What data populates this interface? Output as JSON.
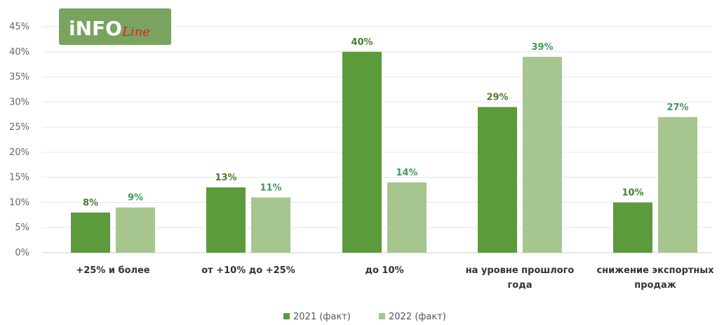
{
  "logo": {
    "text_main": "iNFO",
    "text_script": "Line",
    "bg_color": "#7aa35f"
  },
  "chart_data": {
    "type": "bar",
    "title": "",
    "xlabel": "",
    "ylabel": "",
    "ylim": [
      0,
      45
    ],
    "yticks": [
      "0%",
      "5%",
      "10%",
      "15%",
      "20%",
      "25%",
      "30%",
      "35%",
      "40%",
      "45%"
    ],
    "grid": true,
    "legend_position": "bottom",
    "categories": [
      [
        "+25% и более"
      ],
      [
        "от +10% до +25%"
      ],
      [
        "до 10%"
      ],
      [
        "на уровне прошлого",
        "года"
      ],
      [
        "снижение экспортных",
        "продаж"
      ]
    ],
    "series": [
      {
        "name": "2021 (факт)",
        "color": "#5b9b3b",
        "label_color": "#4a7f2f",
        "values": [
          8,
          13,
          40,
          29,
          10
        ],
        "labels": [
          "8%",
          "13%",
          "40%",
          "29%",
          "10%"
        ]
      },
      {
        "name": "2022 (факт)",
        "color": "#a6c58f",
        "label_color": "#3f9a5a",
        "values": [
          9,
          11,
          14,
          39,
          27
        ],
        "labels": [
          "9%",
          "11%",
          "14%",
          "39%",
          "27%"
        ]
      }
    ]
  }
}
